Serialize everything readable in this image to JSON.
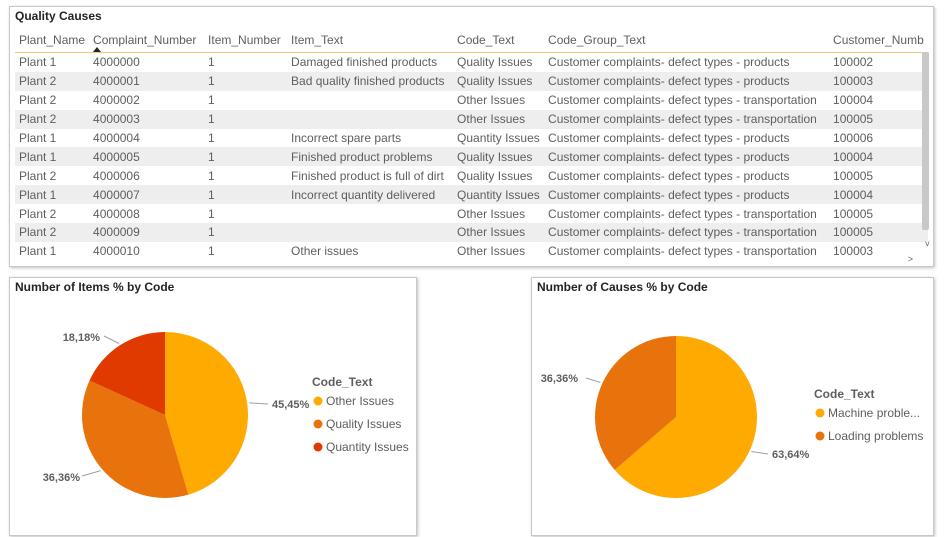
{
  "table": {
    "title": "Quality Causes",
    "columns": [
      "Plant_Name",
      "Complaint_Number",
      "Item_Number",
      "Item_Text",
      "Code_Text",
      "Code_Group_Text",
      "Customer_Numb"
    ],
    "rows": [
      [
        "Plant 1",
        "4000000",
        "1",
        "Damaged finished products",
        "Quality Issues",
        "Customer complaints- defect types - products",
        "100002"
      ],
      [
        "Plant 2",
        "4000001",
        "1",
        "Bad quality finished products",
        "Quality Issues",
        "Customer complaints- defect types - products",
        "100003"
      ],
      [
        "Plant 2",
        "4000002",
        "1",
        "",
        "Other Issues",
        "Customer complaints- defect types - transportation",
        "100004"
      ],
      [
        "Plant 2",
        "4000003",
        "1",
        "",
        "Other Issues",
        "Customer complaints- defect types - transportation",
        "100005"
      ],
      [
        "Plant 1",
        "4000004",
        "1",
        "Incorrect spare parts",
        "Quantity Issues",
        "Customer complaints- defect types - products",
        "100006"
      ],
      [
        "Plant 1",
        "4000005",
        "1",
        "Finished product problems",
        "Quality Issues",
        "Customer complaints- defect types - products",
        "100004"
      ],
      [
        "Plant 2",
        "4000006",
        "1",
        "Finished product is full of dirt",
        "Quality Issues",
        "Customer complaints- defect types - products",
        "100005"
      ],
      [
        "Plant 1",
        "4000007",
        "1",
        "Incorrect quantity delivered",
        "Quantity Issues",
        "Customer complaints- defect types - products",
        "100004"
      ],
      [
        "Plant 2",
        "4000008",
        "1",
        "",
        "Other Issues",
        "Customer complaints- defect types - transportation",
        "100005"
      ],
      [
        "Plant 2",
        "4000009",
        "1",
        "",
        "Other Issues",
        "Customer complaints- defect types - transportation",
        "100005"
      ],
      [
        "Plant 1",
        "4000010",
        "1",
        "Other issues",
        "Other Issues",
        "Customer complaints- defect types - transportation",
        "100003"
      ]
    ],
    "scroll_down": "˅",
    "scroll_right": ">"
  },
  "pie1": {
    "title": "Number of Items % by Code",
    "legend_title": "Code_Text",
    "chart_data": {
      "type": "pie",
      "slices": [
        {
          "name": "Other Issues",
          "value": 45.45,
          "label": "45,45%",
          "color": "#FFAA00"
        },
        {
          "name": "Quality Issues",
          "value": 36.36,
          "label": "36,36%",
          "color": "#E8730C"
        },
        {
          "name": "Quantity Issues",
          "value": 18.18,
          "label": "18,18%",
          "color": "#E03A00"
        }
      ]
    }
  },
  "pie2": {
    "title": "Number of Causes % by Code",
    "legend_title": "Code_Text",
    "chart_data": {
      "type": "pie",
      "slices": [
        {
          "name": "Machine proble...",
          "value": 63.64,
          "label": "63,64%",
          "color": "#FFAA00"
        },
        {
          "name": "Loading problems",
          "value": 36.36,
          "label": "36,36%",
          "color": "#E8730C"
        }
      ]
    }
  }
}
